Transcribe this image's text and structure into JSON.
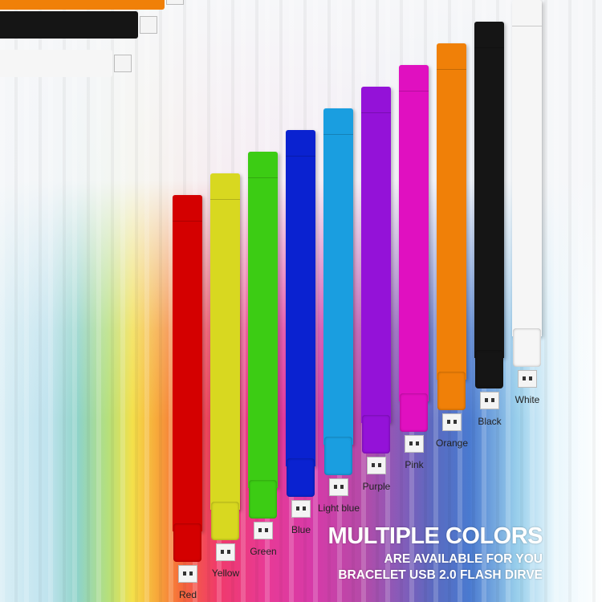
{
  "headline": {
    "line1": "MULTIPLE COLORS",
    "line2": "ARE AVAILABLE FOR YOU",
    "line3": "BRACELET USB 2.0 FLASH DIRVE"
  },
  "bracelets": [
    {
      "label": "Red",
      "color": "#d40000"
    },
    {
      "label": "Yellow",
      "color": "#d8d820"
    },
    {
      "label": "Green",
      "color": "#3ccc14"
    },
    {
      "label": "Blue",
      "color": "#0a22d0"
    },
    {
      "label": "Light blue",
      "color": "#1a9ee0"
    },
    {
      "label": "Purple",
      "color": "#9412d8"
    },
    {
      "label": "Pink",
      "color": "#e010c0"
    },
    {
      "label": "Orange",
      "color": "#f08008"
    },
    {
      "label": "Black",
      "color": "#151515"
    },
    {
      "label": "White",
      "color": "#f6f6f6"
    }
  ],
  "top_bracelet_colors": [
    "#f08008",
    "#151515",
    "#f6f6f6"
  ]
}
